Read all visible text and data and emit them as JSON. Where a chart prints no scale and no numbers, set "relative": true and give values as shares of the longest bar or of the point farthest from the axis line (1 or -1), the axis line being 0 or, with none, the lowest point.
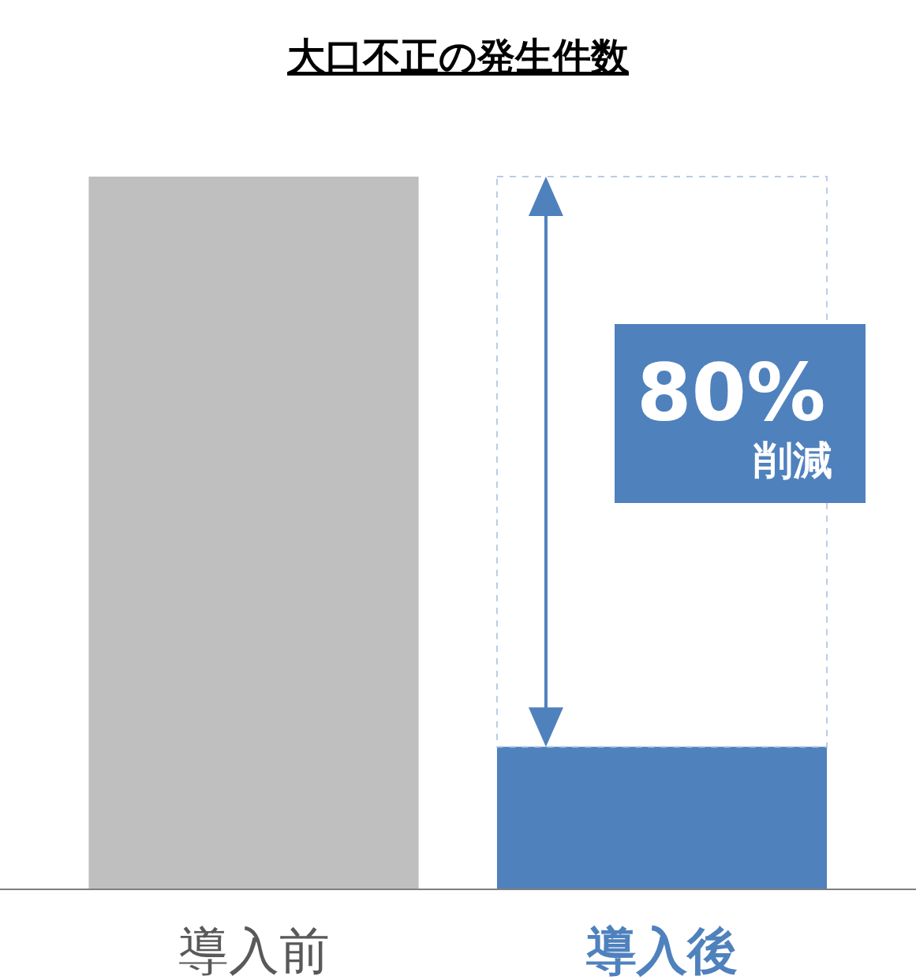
{
  "chart_data": {
    "type": "bar",
    "title": "大口不正の発生件数",
    "categories": [
      "導入前",
      "導入後"
    ],
    "values": [
      1,
      0.2
    ],
    "colors": [
      "#bfbfbf",
      "#4f81bd"
    ],
    "relative": true,
    "annotations": [
      "80%",
      "削減"
    ]
  }
}
